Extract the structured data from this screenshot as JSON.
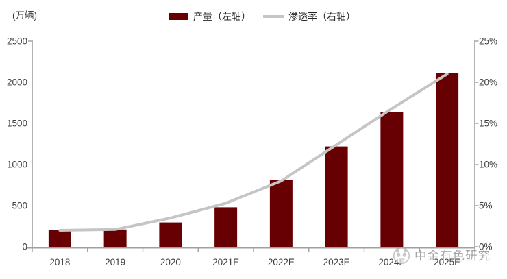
{
  "chart": {
    "unit_label": "(万辆)"
  },
  "legend": {
    "bar_label": "产量（左轴）",
    "line_label": "渗透率（右轴）"
  },
  "watermark": {
    "text": "中金有色研究"
  },
  "colors": {
    "bar": "#670003",
    "line": "#c5c5c6",
    "axis": "#a0a0a2",
    "tick_text": "#3f3f3f"
  },
  "chart_data": {
    "type": "bar",
    "title": "",
    "categories": [
      "2018",
      "2019",
      "2020",
      "2021E",
      "2022E",
      "2023E",
      "2024E",
      "2025E"
    ],
    "series": [
      {
        "name": "产量（左轴）",
        "type": "bar",
        "axis": "left",
        "values": [
          200,
          210,
          295,
          480,
          810,
          1220,
          1635,
          2110
        ]
      },
      {
        "name": "渗透率（右轴）",
        "type": "line",
        "axis": "right",
        "values": [
          2.0,
          2.1,
          3.5,
          5.3,
          8.0,
          12.4,
          16.8,
          21.0
        ]
      }
    ],
    "left_axis": {
      "label": "(万辆)",
      "min": 0,
      "max": 2500,
      "step": 500,
      "tick_labels": [
        "0",
        "500",
        "1000",
        "1500",
        "2000",
        "2500"
      ]
    },
    "right_axis": {
      "min": 0,
      "max": 25,
      "step": 5,
      "format": "percent",
      "tick_labels": [
        "0%",
        "5%",
        "10%",
        "15%",
        "20%",
        "25%"
      ]
    },
    "grid": false,
    "legend_position": "top-center"
  }
}
